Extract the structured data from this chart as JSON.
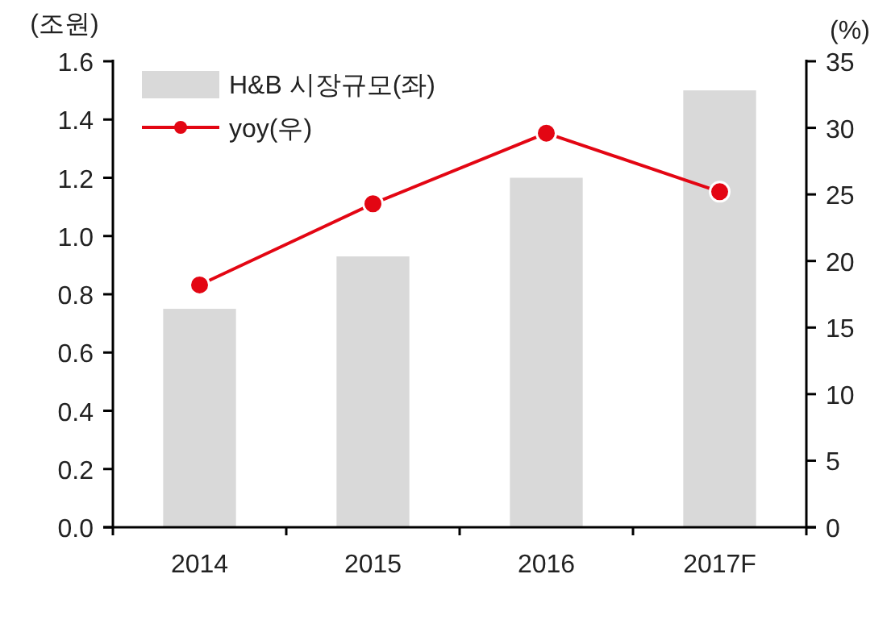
{
  "chart_data": {
    "type": "bar",
    "ylabel": "(조원)",
    "y2label": "(%)",
    "categories": [
      "2014",
      "2015",
      "2016",
      "2017F"
    ],
    "series": [
      {
        "name": "H&B 시장규모(좌)",
        "color": "#d9d9d9",
        "values": [
          0.75,
          0.93,
          1.2,
          1.5
        ]
      },
      {
        "name": "yoy(우)",
        "type": "line",
        "axis": "y2",
        "color": "#e30613",
        "marker": "circle",
        "values": [
          18.2,
          24.3,
          29.6,
          25.2
        ]
      }
    ],
    "ylim": [
      0,
      1.6
    ],
    "yticks": [
      {
        "value": 0,
        "label": "0.0"
      },
      {
        "value": 0.2,
        "label": "0.2"
      },
      {
        "value": 0.4,
        "label": "0.4"
      },
      {
        "value": 0.6,
        "label": "0.6"
      },
      {
        "value": 0.8,
        "label": "0.8"
      },
      {
        "value": 1,
        "label": "1.0"
      },
      {
        "value": 1.2,
        "label": "1.2"
      },
      {
        "value": 1.4,
        "label": "1.4"
      },
      {
        "value": 1.6,
        "label": "1.6"
      }
    ],
    "y2lim": [
      0,
      35
    ],
    "y2ticks": [
      0,
      5,
      10,
      15,
      20,
      25,
      30,
      35
    ],
    "legend": "top left"
  }
}
